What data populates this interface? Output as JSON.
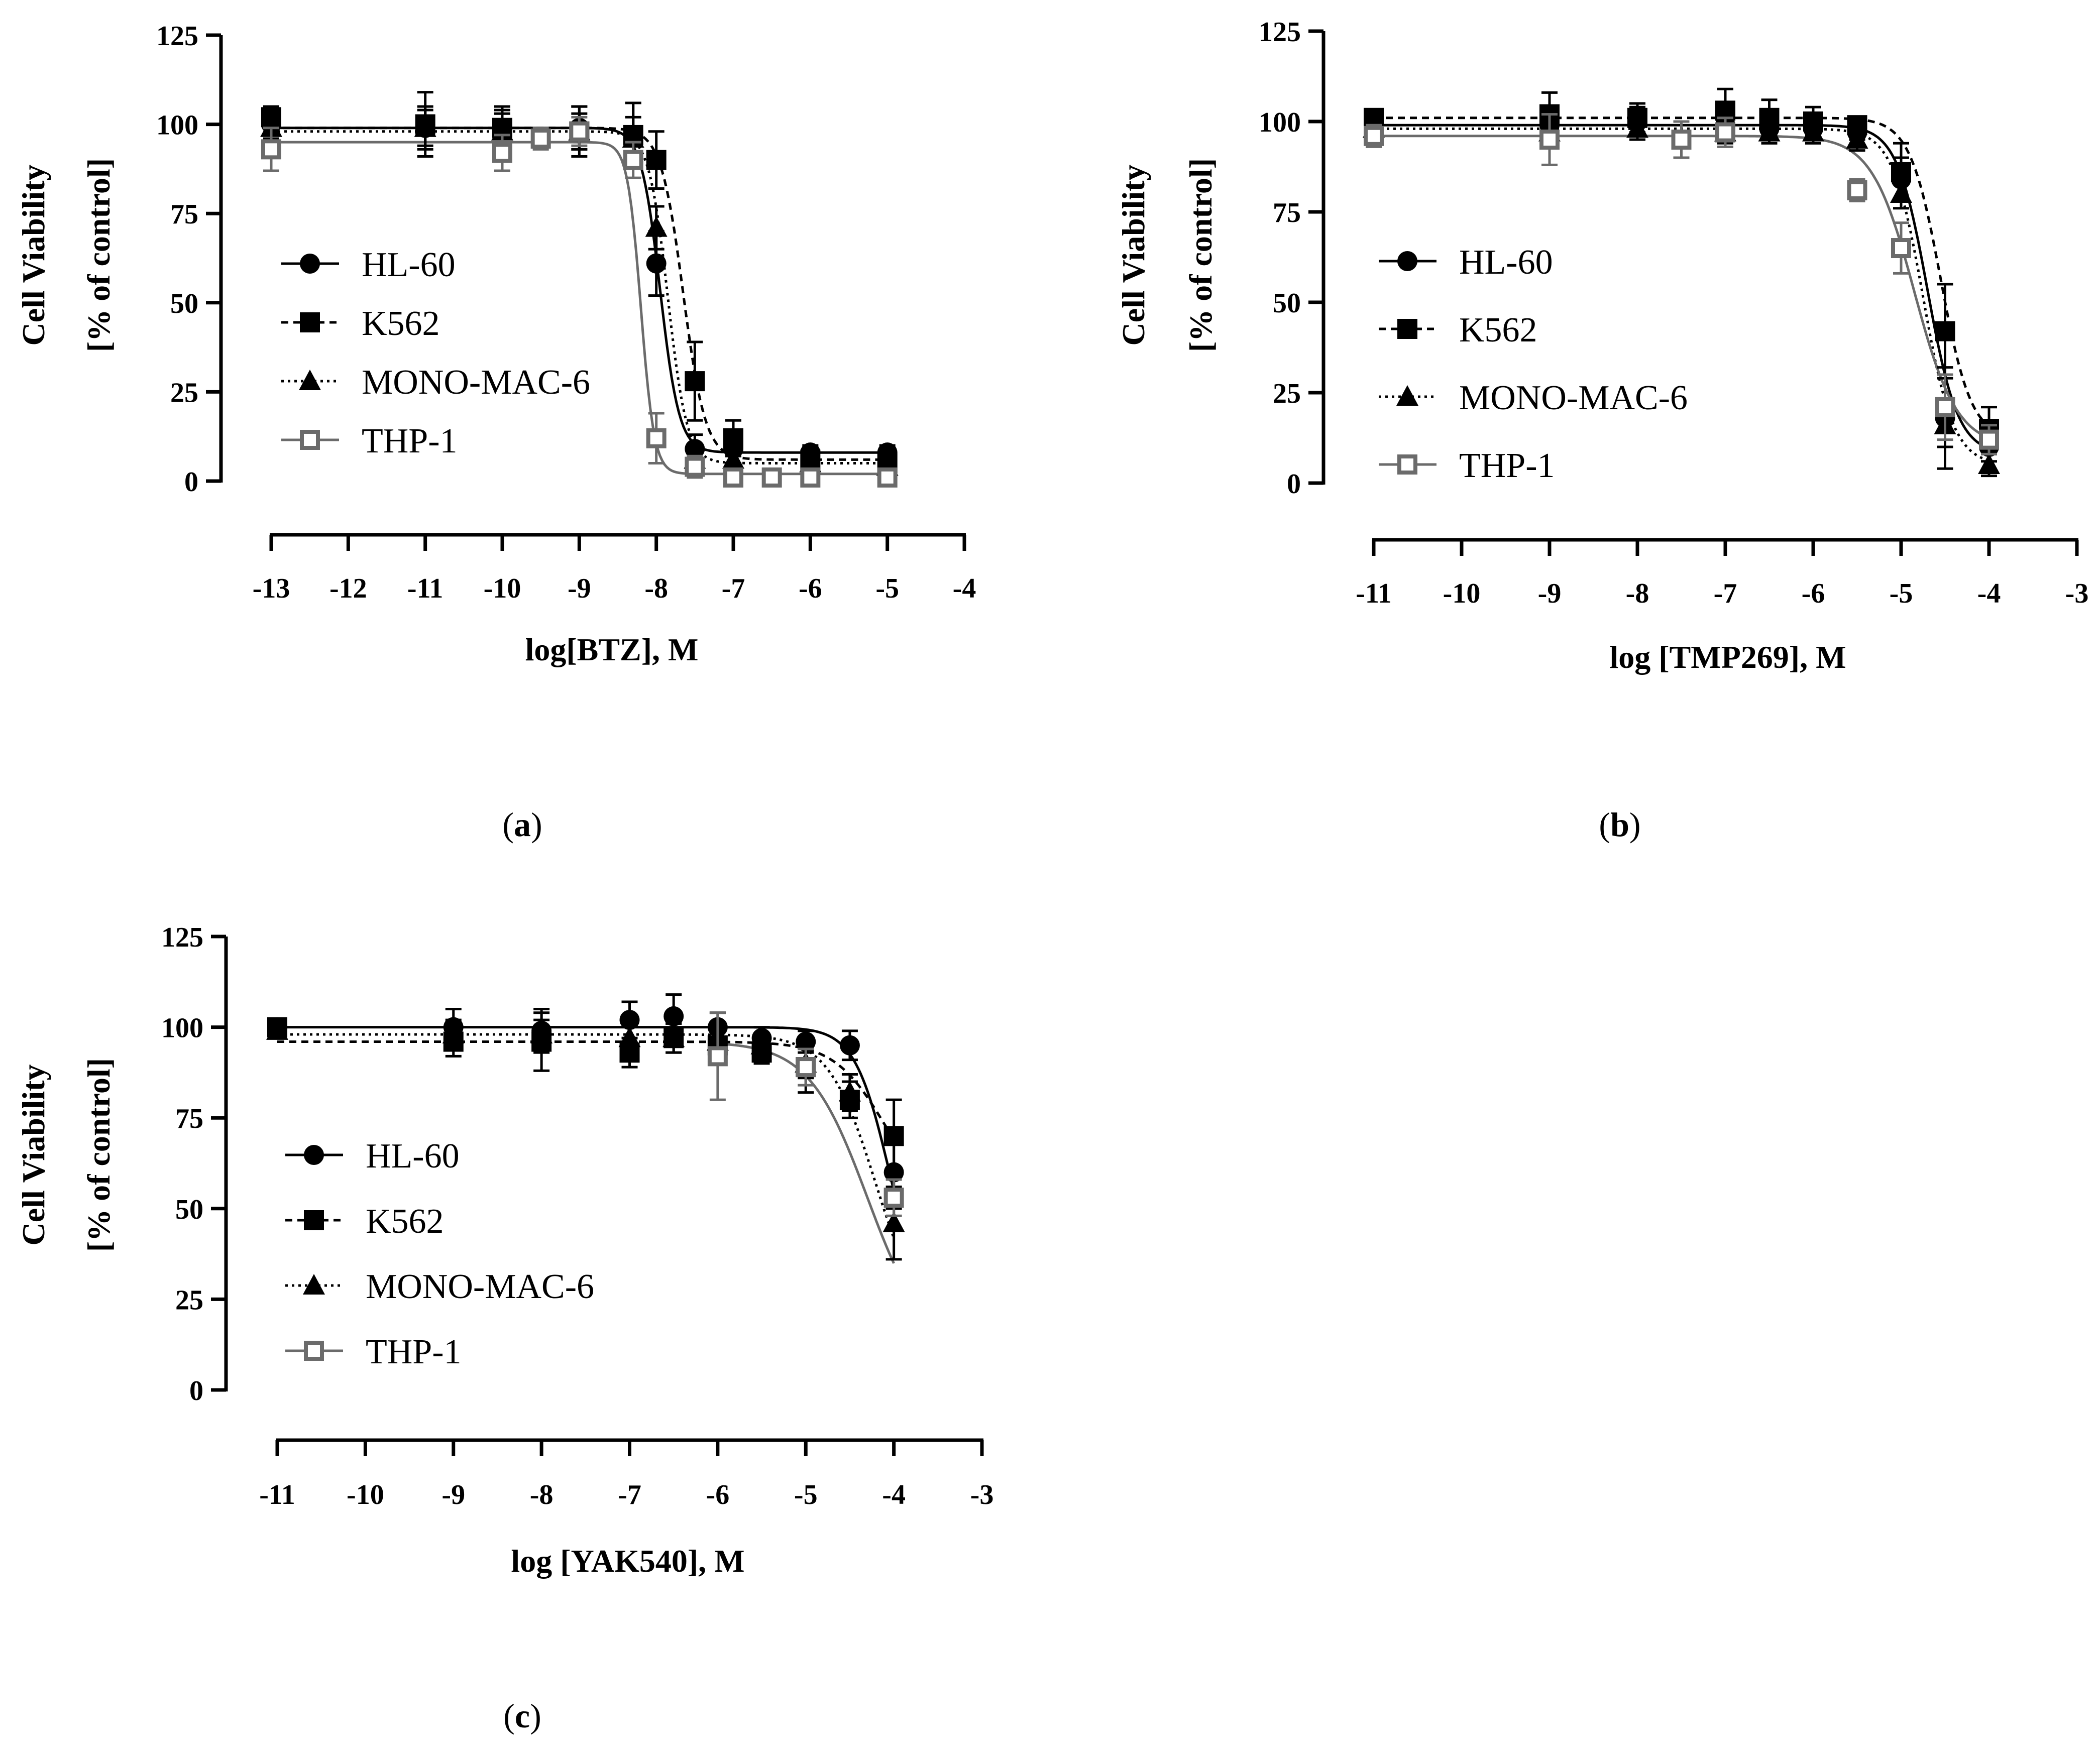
{
  "figure": {
    "panels": [
      "(a)",
      "(b)",
      "(c)"
    ]
  },
  "colors": {
    "HL-60": "#000000",
    "K562": "#000000",
    "MONO-MAC-6": "#000000",
    "THP-1": "#6b6b6b"
  },
  "chart_data": [
    {
      "id": "a",
      "panel_label": "a",
      "type": "scatter",
      "title": "",
      "xlabel": "log[BTZ], M",
      "ylabel": [
        "Cell Viability",
        "[% of control]"
      ],
      "xlim": [
        -13,
        -4
      ],
      "ylim": [
        0,
        125
      ],
      "xticks": [
        -13,
        -12,
        -11,
        -10,
        -9,
        -8,
        -7,
        -6,
        -5,
        -4
      ],
      "yticks": [
        0,
        25,
        50,
        75,
        100,
        125
      ],
      "legend_position": "center-left",
      "series": [
        {
          "name": "HL-60",
          "marker": "circle",
          "line": "solid",
          "x": [
            -13,
            -11,
            -10,
            -9,
            -8.3,
            -8,
            -7.5,
            -7,
            -6,
            -5
          ],
          "y": [
            100,
            99,
            99,
            99,
            97,
            61,
            9,
            9,
            8,
            8
          ],
          "err": [
            3,
            6,
            5,
            6,
            9,
            9,
            4,
            4,
            2,
            2
          ],
          "fit": {
            "top": 99,
            "bottom": 8,
            "logIC50": -7.95,
            "hill": -3.5
          }
        },
        {
          "name": "K562",
          "marker": "square",
          "line": "dashed",
          "x": [
            -13,
            -11,
            -10,
            -9,
            -8.3,
            -8,
            -7.5,
            -7,
            -6,
            -5
          ],
          "y": [
            102,
            100,
            99,
            98,
            97,
            90,
            28,
            12,
            6,
            5
          ],
          "err": [
            3,
            9,
            6,
            7,
            9,
            8,
            11,
            5,
            2,
            2
          ],
          "fit": {
            "top": 99,
            "bottom": 6,
            "logIC50": -7.65,
            "hill": -3
          }
        },
        {
          "name": "MONO-MAC-6",
          "marker": "triangle",
          "line": "dotted",
          "x": [
            -13,
            -11,
            -10,
            -9,
            -8.3,
            -8,
            -7.5,
            -7,
            -6,
            -5
          ],
          "y": [
            99,
            99,
            98,
            98,
            96,
            71,
            6,
            6,
            5,
            4
          ],
          "err": [
            3,
            5,
            5,
            5,
            6,
            6,
            3,
            3,
            2,
            2
          ],
          "fit": {
            "top": 98,
            "bottom": 5,
            "logIC50": -7.85,
            "hill": -3.5
          }
        },
        {
          "name": "THP-1",
          "marker": "open-square",
          "line": "solid-gray",
          "x": [
            -13,
            -10,
            -9.5,
            -9,
            -8.3,
            -8,
            -7.5,
            -7,
            -6.5,
            -6,
            -5
          ],
          "y": [
            93,
            92,
            96,
            98,
            90,
            12,
            4,
            1,
            1,
            1,
            1
          ],
          "err": [
            6,
            5,
            3,
            4,
            5,
            7,
            3,
            1,
            1,
            1,
            1
          ],
          "fit": {
            "top": 95,
            "bottom": 2,
            "logIC50": -8.2,
            "hill": -5
          }
        }
      ]
    },
    {
      "id": "b",
      "panel_label": "b",
      "type": "scatter",
      "title": "",
      "xlabel": "log [TMP269], M",
      "ylabel": [
        "Cell Viability",
        "[% of control]"
      ],
      "xlim": [
        -11,
        -3
      ],
      "ylim": [
        0,
        125
      ],
      "xticks": [
        -11,
        -10,
        -9,
        -8,
        -7,
        -6,
        -5,
        -4,
        -3
      ],
      "yticks": [
        0,
        25,
        50,
        75,
        100,
        125
      ],
      "legend_position": "center-left",
      "series": [
        {
          "name": "HL-60",
          "marker": "circle",
          "line": "solid",
          "x": [
            -11,
            -9,
            -8,
            -7,
            -6.5,
            -6,
            -5.5,
            -5,
            -4.5,
            -4
          ],
          "y": [
            99,
            99,
            100,
            99,
            98,
            98,
            97,
            84,
            18,
            10
          ],
          "err": [
            2,
            4,
            4,
            4,
            4,
            4,
            2,
            6,
            14,
            4
          ],
          "fit": {
            "top": 99,
            "bottom": 8,
            "logIC50": -4.7,
            "hill": -2.5
          }
        },
        {
          "name": "K562",
          "marker": "square",
          "line": "dashed",
          "x": [
            -11,
            -9,
            -8,
            -7,
            -6.5,
            -6,
            -5.5,
            -5,
            -4.5,
            -4
          ],
          "y": [
            101,
            102,
            101,
            103,
            101,
            100,
            99,
            86,
            42,
            15
          ],
          "err": [
            2,
            6,
            4,
            6,
            5,
            4,
            2,
            8,
            13,
            6
          ],
          "fit": {
            "top": 101,
            "bottom": 12,
            "logIC50": -4.55,
            "hill": -2.5
          }
        },
        {
          "name": "MONO-MAC-6",
          "marker": "triangle",
          "line": "dotted",
          "x": [
            -11,
            -9,
            -8,
            -7,
            -6.5,
            -6,
            -5.5,
            -5,
            -4.5,
            -4
          ],
          "y": [
            98,
            97,
            98,
            97,
            97,
            97,
            95,
            80,
            16,
            5
          ],
          "err": [
            2,
            3,
            3,
            3,
            3,
            3,
            3,
            4,
            6,
            3
          ],
          "fit": {
            "top": 98,
            "bottom": 5,
            "logIC50": -4.75,
            "hill": -2.5
          }
        },
        {
          "name": "THP-1",
          "marker": "open-square",
          "line": "solid-gray",
          "x": [
            -11,
            -9,
            -7.5,
            -7,
            -5.5,
            -5,
            -4.5,
            -4
          ],
          "y": [
            96,
            95,
            95,
            97,
            81,
            65,
            21,
            12
          ],
          "err": [
            3,
            7,
            5,
            4,
            3,
            7,
            9,
            4
          ],
          "fit": {
            "top": 96,
            "bottom": 10,
            "logIC50": -4.85,
            "hill": -1.8
          }
        }
      ]
    },
    {
      "id": "c",
      "panel_label": "c",
      "type": "scatter",
      "title": "",
      "xlabel": "log [YAK540], M",
      "ylabel": [
        "Cell Viability",
        "[% of control]"
      ],
      "xlim": [
        -11,
        -3
      ],
      "ylim": [
        0,
        125
      ],
      "xticks": [
        -11,
        -10,
        -9,
        -8,
        -7,
        -6,
        -5,
        -4,
        -3
      ],
      "yticks": [
        0,
        25,
        50,
        75,
        100,
        125
      ],
      "legend_position": "bottom-left",
      "series": [
        {
          "name": "HL-60",
          "marker": "circle",
          "line": "solid",
          "x": [
            -11,
            -9,
            -8,
            -7,
            -6.5,
            -6,
            -5.5,
            -5,
            -4.5,
            -4
          ],
          "y": [
            100,
            100,
            99,
            102,
            103,
            100,
            97,
            96,
            95,
            60
          ],
          "err": [
            2,
            5,
            6,
            5,
            6,
            4,
            3,
            3,
            4,
            10
          ],
          "fit": {
            "top": 100,
            "bottom": 20,
            "logIC50": -4.05,
            "hill": -2.2
          }
        },
        {
          "name": "K562",
          "marker": "square",
          "line": "dashed",
          "x": [
            -11,
            -9,
            -8,
            -7,
            -6.5,
            -6,
            -5.5,
            -5,
            -4.5,
            -4
          ],
          "y": [
            100,
            96,
            96,
            93,
            97,
            95,
            93,
            89,
            80,
            70
          ],
          "err": [
            2,
            4,
            8,
            4,
            4,
            4,
            3,
            7,
            5,
            10
          ],
          "fit": {
            "top": 96,
            "bottom": 50,
            "logIC50": -4.1,
            "hill": -1.5
          }
        },
        {
          "name": "MONO-MAC-6",
          "marker": "triangle",
          "line": "dotted",
          "x": [
            -11,
            -9,
            -8,
            -7,
            -6.5,
            -6,
            -5.5,
            -5,
            -4.5,
            -4
          ],
          "y": [
            99,
            98,
            98,
            97,
            97,
            96,
            95,
            90,
            82,
            46
          ],
          "err": [
            2,
            4,
            4,
            4,
            4,
            4,
            3,
            4,
            5,
            10
          ],
          "fit": {
            "top": 98,
            "bottom": 15,
            "logIC50": -4.2,
            "hill": -1.6
          }
        },
        {
          "name": "THP-1",
          "marker": "open-square",
          "line": "solid-gray",
          "x": [
            -6,
            -5,
            -4
          ],
          "y": [
            92,
            89,
            53
          ],
          "err": [
            12,
            5,
            5
          ],
          "fit": {
            "top": 96,
            "bottom": 10,
            "logIC50": -4.3,
            "hill": -1.3
          }
        }
      ]
    }
  ]
}
